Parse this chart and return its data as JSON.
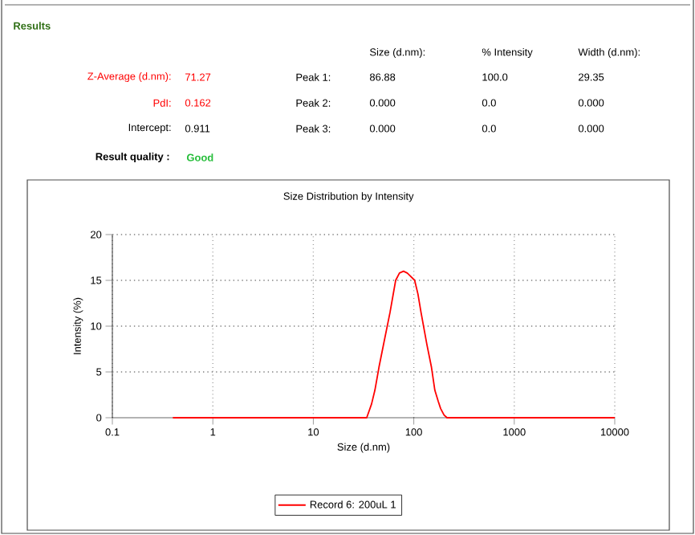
{
  "chart_data": {
    "type": "line",
    "title": "Size Distribution by Intensity",
    "xlabel": "Size (d.nm)",
    "ylabel": "Intensity (%)",
    "annotations": [
      "Results",
      "Z-Average (d.nm):",
      "71.27",
      "PdI:",
      "0.162",
      "Intercept:",
      "0.911",
      "Result quality :",
      "Good",
      "Size (d.nm):",
      "% Intensity",
      "Width (d.nm):",
      "Peak 1:",
      "86.88",
      "100.0",
      "29.35",
      "Peak 2:",
      "0.000",
      "0.0",
      "0.000",
      "Peak 3:",
      "0.000",
      "0.0",
      "0.000"
    ],
    "series": [
      {
        "name": "Record 6: 200uL 1",
        "color": "#ff0000",
        "x": [
          0.4,
          10,
          30,
          34,
          38,
          41,
          45,
          50,
          58,
          66,
          72,
          79,
          86,
          92,
          102,
          110,
          118,
          135,
          150,
          162,
          175,
          185,
          200,
          214,
          1000,
          10000
        ],
        "values": [
          0,
          0,
          0,
          0,
          1.5,
          3,
          5.5,
          8,
          11.5,
          15,
          15.8,
          16,
          15.8,
          15.5,
          15,
          13.5,
          11.5,
          8,
          5.5,
          3,
          1.8,
          1,
          0.3,
          0,
          0,
          0
        ]
      }
    ],
    "log": "x",
    "xlim": [
      0.1,
      10000
    ],
    "xticks": [
      0.1,
      1,
      10,
      100,
      1000,
      10000
    ],
    "ylim": [
      0,
      20
    ],
    "yticks": [
      0,
      5,
      10,
      15,
      20
    ],
    "grid": true,
    "legend": "bottom",
    "marker": "none",
    "line_style": "solid"
  }
}
